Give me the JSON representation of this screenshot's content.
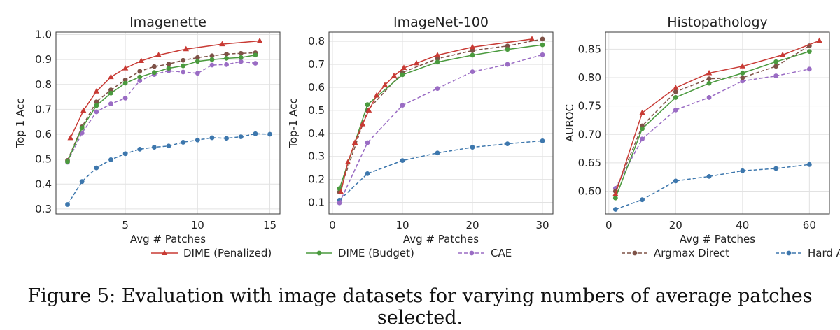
{
  "caption": "Figure 5:   Evaluation with image datasets for varying numbers of average patches selected.",
  "series_styles": [
    {
      "name": "DIME (Penalized)",
      "color": "#c83a34",
      "marker": "triangle",
      "dash": false
    },
    {
      "name": "DIME (Budget)",
      "color": "#4a9a3e",
      "marker": "circle",
      "dash": false
    },
    {
      "name": "CAE",
      "color": "#9a6cc4",
      "marker": "circle",
      "dash": true
    },
    {
      "name": "Argmax Direct",
      "color": "#7e5247",
      "marker": "circle",
      "dash": true
    },
    {
      "name": "Hard Attn",
      "color": "#3d77ad",
      "marker": "circle",
      "dash": true
    }
  ],
  "chart_data": [
    {
      "type": "line",
      "title": "Imagenette",
      "xlabel": "Avg # Patches",
      "ylabel": "Top 1 Acc",
      "xlim": [
        0.2,
        15.7
      ],
      "ylim": [
        0.28,
        1.01
      ],
      "xticks": [
        5,
        10,
        15
      ],
      "yticks": [
        0.3,
        0.4,
        0.5,
        0.6,
        0.7,
        0.8,
        0.9,
        1.0
      ],
      "ytick_labels": [
        "0.3",
        "0.4",
        "0.5",
        "0.6",
        "0.7",
        "0.8",
        "0.9",
        "1.0"
      ],
      "series": [
        {
          "name": "DIME (Penalized)",
          "x": [
            1.2,
            2.1,
            3.0,
            4.0,
            5.0,
            6.1,
            7.3,
            9.2,
            11.7,
            14.3
          ],
          "y": [
            0.585,
            0.695,
            0.772,
            0.83,
            0.865,
            0.895,
            0.918,
            0.942,
            0.962,
            0.975
          ]
        },
        {
          "name": "DIME (Budget)",
          "x": [
            1,
            2,
            3,
            4,
            5,
            6,
            7,
            8,
            9,
            10,
            11,
            12,
            13,
            14
          ],
          "y": [
            0.49,
            0.625,
            0.715,
            0.765,
            0.805,
            0.83,
            0.848,
            0.865,
            0.875,
            0.893,
            0.9,
            0.905,
            0.908,
            0.918
          ]
        },
        {
          "name": "CAE",
          "x": [
            1,
            2,
            3,
            4,
            5,
            6,
            7,
            8,
            9,
            10,
            11,
            12,
            13,
            14
          ],
          "y": [
            0.488,
            0.605,
            0.69,
            0.722,
            0.745,
            0.815,
            0.84,
            0.855,
            0.85,
            0.845,
            0.878,
            0.88,
            0.892,
            0.885
          ]
        },
        {
          "name": "Argmax Direct",
          "x": [
            1,
            2,
            3,
            4,
            5,
            6,
            7,
            8,
            9,
            10,
            11,
            12,
            13,
            14
          ],
          "y": [
            0.495,
            0.63,
            0.73,
            0.778,
            0.818,
            0.853,
            0.872,
            0.882,
            0.897,
            0.908,
            0.915,
            0.922,
            0.925,
            0.927
          ]
        },
        {
          "name": "Hard Attn",
          "x": [
            1,
            2,
            3,
            4,
            5,
            6,
            7,
            8,
            9,
            10,
            11,
            12,
            13,
            14,
            15
          ],
          "y": [
            0.318,
            0.41,
            0.465,
            0.498,
            0.522,
            0.54,
            0.548,
            0.553,
            0.568,
            0.577,
            0.586,
            0.584,
            0.59,
            0.602,
            0.6
          ]
        }
      ]
    },
    {
      "type": "line",
      "title": "ImageNet-100",
      "xlabel": "Avg # Patches",
      "ylabel": "Top-1 Acc",
      "xlim": [
        -0.5,
        31.5
      ],
      "ylim": [
        0.05,
        0.84
      ],
      "xticks": [
        0,
        10,
        20,
        30
      ],
      "yticks": [
        0.1,
        0.2,
        0.3,
        0.4,
        0.5,
        0.6,
        0.7,
        0.8
      ],
      "ytick_labels": [
        "0.1",
        "0.2",
        "0.3",
        "0.4",
        "0.5",
        "0.6",
        "0.7",
        "0.8"
      ],
      "series": [
        {
          "name": "DIME (Penalized)",
          "x": [
            1.2,
            2.2,
            3.2,
            4.3,
            5.2,
            6.3,
            7.5,
            8.8,
            10.2,
            12,
            15,
            20,
            28.5
          ],
          "y": [
            0.145,
            0.275,
            0.36,
            0.44,
            0.5,
            0.565,
            0.61,
            0.65,
            0.685,
            0.705,
            0.74,
            0.775,
            0.81
          ]
        },
        {
          "name": "DIME (Budget)",
          "x": [
            1,
            5,
            10,
            15,
            20,
            25,
            30
          ],
          "y": [
            0.16,
            0.525,
            0.655,
            0.71,
            0.74,
            0.765,
            0.785
          ]
        },
        {
          "name": "CAE",
          "x": [
            1,
            5,
            10,
            15,
            20,
            25,
            30
          ],
          "y": [
            0.098,
            0.36,
            0.522,
            0.595,
            0.668,
            0.7,
            0.742
          ]
        },
        {
          "name": "Argmax Direct",
          "x": [
            1,
            5,
            10,
            15,
            20,
            25,
            30
          ],
          "y": [
            0.145,
            0.5,
            0.665,
            0.725,
            0.76,
            0.78,
            0.81
          ]
        },
        {
          "name": "Hard Attn",
          "x": [
            1,
            5,
            10,
            15,
            20,
            25,
            30
          ],
          "y": [
            0.11,
            0.225,
            0.282,
            0.315,
            0.34,
            0.355,
            0.368
          ]
        }
      ]
    },
    {
      "type": "line",
      "title": "Histopathology",
      "xlabel": "Avg # Patches",
      "ylabel": "AUROC",
      "xlim": [
        -1,
        66
      ],
      "ylim": [
        0.56,
        0.88
      ],
      "xticks": [
        0,
        20,
        40,
        60
      ],
      "yticks": [
        0.6,
        0.65,
        0.7,
        0.75,
        0.8,
        0.85
      ],
      "ytick_labels": [
        "0.60",
        "0.65",
        "0.70",
        "0.75",
        "0.80",
        "0.85"
      ],
      "series": [
        {
          "name": "DIME (Penalized)",
          "x": [
            2,
            10,
            20,
            30,
            40,
            52,
            63
          ],
          "y": [
            0.595,
            0.738,
            0.782,
            0.808,
            0.82,
            0.84,
            0.865
          ]
        },
        {
          "name": "DIME (Budget)",
          "x": [
            2,
            10,
            20,
            30,
            40,
            50,
            60
          ],
          "y": [
            0.588,
            0.71,
            0.765,
            0.79,
            0.808,
            0.828,
            0.846
          ]
        },
        {
          "name": "CAE",
          "x": [
            2,
            10,
            20,
            30,
            40,
            50,
            60
          ],
          "y": [
            0.605,
            0.692,
            0.743,
            0.765,
            0.794,
            0.803,
            0.815
          ]
        },
        {
          "name": "Argmax Direct",
          "x": [
            2,
            10,
            20,
            30,
            40,
            50,
            60
          ],
          "y": [
            0.6,
            0.715,
            0.775,
            0.798,
            0.8,
            0.82,
            0.856
          ]
        },
        {
          "name": "Hard Attn",
          "x": [
            2,
            10,
            20,
            30,
            40,
            50,
            60
          ],
          "y": [
            0.568,
            0.585,
            0.618,
            0.626,
            0.636,
            0.64,
            0.647
          ]
        }
      ]
    }
  ]
}
